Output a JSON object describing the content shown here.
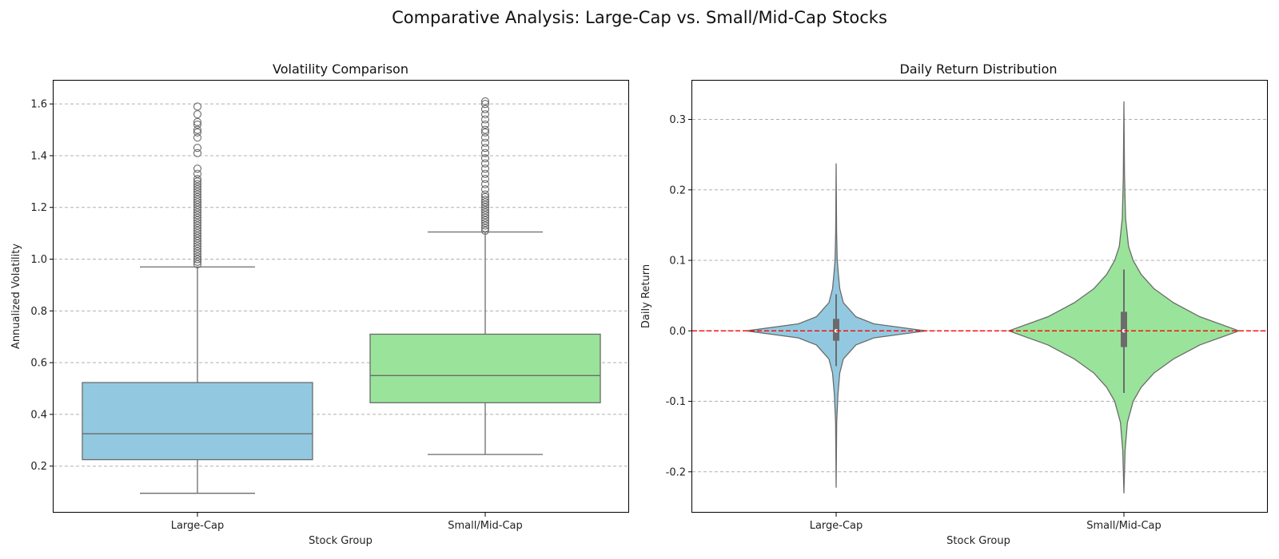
{
  "figure": {
    "title": "Comparative Analysis: Large-Cap vs. Small/Mid-Cap Stocks"
  },
  "colors": {
    "large_cap": "#92c9e0",
    "small_mid_cap": "#9ae39a",
    "edge": "#6b6b6b",
    "grid": "#b0b0b0",
    "zero_line": "#ff0000"
  },
  "chart_data": [
    {
      "type": "box",
      "title": "Volatility Comparison",
      "xlabel": "Stock Group",
      "ylabel": "Annualized Volatility",
      "categories": [
        "Large-Cap",
        "Small/Mid-Cap"
      ],
      "ylim": [
        0.02,
        1.69
      ],
      "yticks": [
        0.2,
        0.4,
        0.6,
        0.8,
        1.0,
        1.2,
        1.4,
        1.6
      ],
      "grid": "y-dashed",
      "series": [
        {
          "category": "Large-Cap",
          "whisker_low": 0.095,
          "q1": 0.225,
          "median": 0.325,
          "q3": 0.523,
          "whisker_high": 0.97,
          "outliers": [
            0.98,
            0.99,
            1.0,
            1.0,
            1.01,
            1.02,
            1.03,
            1.04,
            1.05,
            1.06,
            1.07,
            1.08,
            1.09,
            1.1,
            1.11,
            1.12,
            1.13,
            1.14,
            1.15,
            1.16,
            1.17,
            1.18,
            1.19,
            1.2,
            1.21,
            1.22,
            1.23,
            1.24,
            1.25,
            1.26,
            1.27,
            1.28,
            1.29,
            1.3,
            1.31,
            1.33,
            1.35,
            1.41,
            1.43,
            1.47,
            1.49,
            1.5,
            1.52,
            1.53,
            1.56,
            1.59
          ]
        },
        {
          "category": "Small/Mid-Cap",
          "whisker_low": 0.245,
          "q1": 0.445,
          "median": 0.55,
          "q3": 0.71,
          "whisker_high": 1.105,
          "outliers": [
            1.11,
            1.12,
            1.13,
            1.14,
            1.15,
            1.16,
            1.17,
            1.18,
            1.19,
            1.2,
            1.21,
            1.22,
            1.23,
            1.24,
            1.25,
            1.27,
            1.29,
            1.31,
            1.33,
            1.35,
            1.37,
            1.39,
            1.41,
            1.43,
            1.45,
            1.47,
            1.49,
            1.5,
            1.52,
            1.54,
            1.56,
            1.58,
            1.6,
            1.61
          ]
        }
      ]
    },
    {
      "type": "violin",
      "title": "Daily Return Distribution",
      "xlabel": "Stock Group",
      "ylabel": "Daily Return",
      "categories": [
        "Large-Cap",
        "Small/Mid-Cap"
      ],
      "ylim": [
        -0.258,
        0.355
      ],
      "yticks": [
        -0.2,
        -0.1,
        0.0,
        0.1,
        0.2,
        0.3
      ],
      "grid": "y-dashed",
      "reference_line": 0.0,
      "series": [
        {
          "category": "Large-Cap",
          "min": -0.222,
          "max": 0.237,
          "q1": -0.014,
          "median": 0.0,
          "q3": 0.017,
          "whisker_low": -0.05,
          "whisker_high": 0.052,
          "density_profile": [
            [
              -0.222,
              0.0
            ],
            [
              -0.13,
              0.006
            ],
            [
              -0.09,
              0.02
            ],
            [
              -0.06,
              0.04
            ],
            [
              -0.04,
              0.08
            ],
            [
              -0.02,
              0.22
            ],
            [
              -0.01,
              0.42
            ],
            [
              0.0,
              1.0
            ],
            [
              0.01,
              0.42
            ],
            [
              0.02,
              0.22
            ],
            [
              0.04,
              0.08
            ],
            [
              0.06,
              0.04
            ],
            [
              0.08,
              0.025
            ],
            [
              0.1,
              0.012
            ],
            [
              0.14,
              0.005
            ],
            [
              0.237,
              0.0
            ]
          ]
        },
        {
          "category": "Small/Mid-Cap",
          "min": -0.23,
          "max": 0.325,
          "q1": -0.023,
          "median": 0.0,
          "q3": 0.027,
          "whisker_low": -0.088,
          "whisker_high": 0.087,
          "density_profile": [
            [
              -0.23,
              0.0
            ],
            [
              -0.17,
              0.01
            ],
            [
              -0.13,
              0.03
            ],
            [
              -0.1,
              0.08
            ],
            [
              -0.08,
              0.15
            ],
            [
              -0.06,
              0.26
            ],
            [
              -0.04,
              0.43
            ],
            [
              -0.02,
              0.66
            ],
            [
              0.0,
              1.0
            ],
            [
              0.02,
              0.66
            ],
            [
              0.04,
              0.43
            ],
            [
              0.06,
              0.26
            ],
            [
              0.08,
              0.15
            ],
            [
              0.1,
              0.08
            ],
            [
              0.12,
              0.04
            ],
            [
              0.16,
              0.014
            ],
            [
              0.22,
              0.005
            ],
            [
              0.325,
              0.0
            ]
          ]
        }
      ]
    }
  ]
}
